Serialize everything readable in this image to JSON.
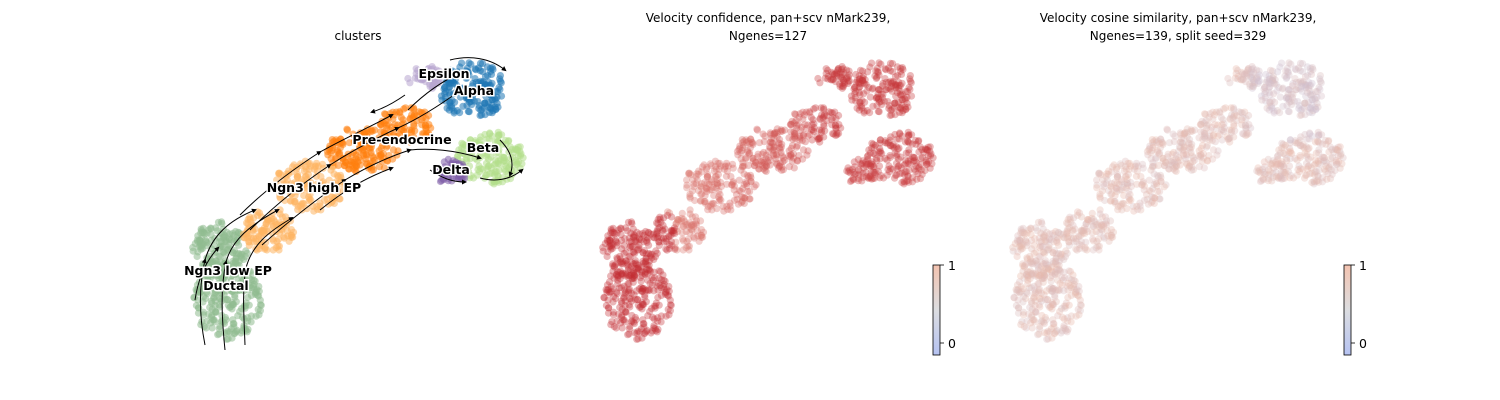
{
  "panels": [
    {
      "title_line1": "clusters",
      "title_line2": ""
    },
    {
      "title_line1": "Velocity confidence, pan+scv nMark239,",
      "title_line2": "Ngenes=127"
    },
    {
      "title_line1": "Velocity cosine similarity, pan+scv nMark239,",
      "title_line2": "Ngenes=139, split seed=329"
    }
  ],
  "colorbars": [
    {
      "ticks": [
        {
          "value": 1,
          "label": "1"
        },
        {
          "value": 0,
          "label": "0"
        }
      ]
    },
    {
      "ticks": [
        {
          "value": 1,
          "label": "1"
        },
        {
          "value": 0,
          "label": "0"
        }
      ]
    }
  ],
  "chart_data": [
    {
      "type": "scatter",
      "title": "clusters",
      "embedding": "umap",
      "overlay": "velocity streamlines",
      "axes_visible": false,
      "clusters": [
        {
          "name": "Ductal",
          "color": "#8fbc8f"
        },
        {
          "name": "Ngn3 low EP",
          "color": "#8fbc8f"
        },
        {
          "name": "Ngn3 high EP",
          "color": "#fdb462"
        },
        {
          "name": "Pre-endocrine",
          "color": "#ff7f0e"
        },
        {
          "name": "Beta",
          "color": "#b2df8a"
        },
        {
          "name": "Alpha",
          "color": "#1f77b4"
        },
        {
          "name": "Delta",
          "color": "#7f5fa8"
        },
        {
          "name": "Epsilon",
          "color": "#b8a6cf"
        }
      ]
    },
    {
      "type": "scatter",
      "title": "Velocity confidence, pan+scv nMark239, Ngenes=127",
      "colormap": "coolwarm",
      "colorbar_range": [
        0,
        1
      ],
      "axes_visible": false
    },
    {
      "type": "scatter",
      "title": "Velocity cosine similarity, pan+scv nMark239, Ngenes=139, split seed=329",
      "colormap": "coolwarm",
      "colorbar_range": [
        0,
        1
      ],
      "axes_visible": false
    }
  ]
}
